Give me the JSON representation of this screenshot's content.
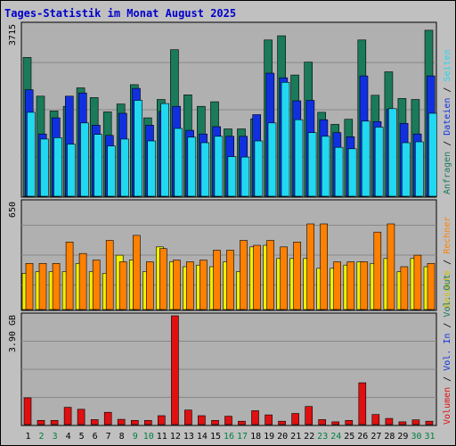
{
  "title": "Tages-Statistik im Monat August 2025",
  "colors": {
    "background": "#c0c0c0",
    "panel": "#b0b0b0",
    "title": "#0000cc",
    "anfragen": "#1a7a5a",
    "dateien": "#1030e0",
    "seiten": "#20d8f0",
    "besuche": "#f0f000",
    "rechner": "#ff8000",
    "volumen": "#e01010",
    "weekend_label": "#008040",
    "weekday_label": "#000000"
  },
  "legend": {
    "top_right": [
      {
        "text": "Anfragen",
        "color": "#1a7a5a"
      },
      {
        "text": " / ",
        "color": "#000000"
      },
      {
        "text": "Dateien",
        "color": "#1030e0"
      },
      {
        "text": " / ",
        "color": "#000000"
      },
      {
        "text": "Seiten",
        "color": "#20d8f0"
      }
    ],
    "middle_right": [
      {
        "text": "Besuche",
        "color": "#d0c000"
      },
      {
        "text": " / ",
        "color": "#000000"
      },
      {
        "text": "Rechner",
        "color": "#ff8000"
      }
    ],
    "bottom_right": [
      {
        "text": "Volumen",
        "color": "#e01010"
      },
      {
        "text": " / ",
        "color": "#000000"
      },
      {
        "text": "Vol. In",
        "color": "#1030e0"
      },
      {
        "text": " / ",
        "color": "#000000"
      },
      {
        "text": "Vol. Out",
        "color": "#1a7a5a"
      }
    ]
  },
  "chart_data": [
    {
      "type": "bar",
      "panel": "requests",
      "ymax_label": "3715",
      "ylim": [
        0,
        3715
      ],
      "categories": [
        "1",
        "2",
        "3",
        "4",
        "5",
        "6",
        "7",
        "8",
        "9",
        "10",
        "11",
        "12",
        "13",
        "14",
        "15",
        "16",
        "17",
        "18",
        "19",
        "20",
        "21",
        "22",
        "23",
        "24",
        "25",
        "26",
        "27",
        "28",
        "29",
        "30",
        "31"
      ],
      "series": [
        {
          "name": "Anfragen",
          "color": "#1a7a5a",
          "values": [
            3010,
            2170,
            1850,
            1950,
            2350,
            2140,
            1830,
            2000,
            2420,
            1700,
            2100,
            3180,
            2200,
            1950,
            2050,
            1460,
            1460,
            1680,
            3390,
            3480,
            2630,
            2910,
            1820,
            1560,
            1670,
            3390,
            2190,
            2700,
            2120,
            2100,
            3600
          ]
        },
        {
          "name": "Dateien",
          "color": "#1030e0",
          "values": [
            2310,
            1350,
            1700,
            2170,
            2240,
            1540,
            1320,
            1800,
            2340,
            1540,
            1840,
            1950,
            1430,
            1350,
            1510,
            1300,
            1300,
            1770,
            2670,
            2570,
            2070,
            2080,
            1660,
            1380,
            1290,
            2610,
            1620,
            1890,
            1580,
            1350,
            2610
          ]
        },
        {
          "name": "Seiten",
          "color": "#20d8f0",
          "values": [
            1820,
            1240,
            1270,
            1130,
            1590,
            1340,
            1090,
            1240,
            2080,
            1200,
            2010,
            1470,
            1280,
            1160,
            1300,
            860,
            850,
            1200,
            1590,
            2470,
            1660,
            1380,
            1300,
            1060,
            1030,
            1630,
            1500,
            1900,
            1160,
            1180,
            1800
          ]
        }
      ]
    },
    {
      "type": "bar",
      "panel": "visits",
      "ymax_label": "650",
      "ylim": [
        0,
        650
      ],
      "categories": [
        "1",
        "2",
        "3",
        "4",
        "5",
        "6",
        "7",
        "8",
        "9",
        "10",
        "11",
        "12",
        "13",
        "14",
        "15",
        "16",
        "17",
        "18",
        "19",
        "20",
        "21",
        "22",
        "23",
        "24",
        "25",
        "26",
        "27",
        "28",
        "29",
        "30",
        "31"
      ],
      "series": [
        {
          "name": "Besuche",
          "color": "#f0f000",
          "values": [
            220,
            230,
            230,
            230,
            280,
            230,
            220,
            330,
            300,
            230,
            380,
            290,
            260,
            270,
            260,
            290,
            230,
            380,
            390,
            310,
            310,
            310,
            250,
            250,
            270,
            290,
            280,
            310,
            230,
            310,
            260
          ]
        },
        {
          "name": "Rechner",
          "color": "#ff8000",
          "values": [
            280,
            280,
            280,
            410,
            340,
            300,
            420,
            290,
            450,
            290,
            370,
            300,
            290,
            300,
            360,
            360,
            420,
            390,
            420,
            380,
            410,
            520,
            520,
            290,
            290,
            290,
            470,
            520,
            260,
            330,
            280
          ]
        }
      ]
    },
    {
      "type": "bar",
      "panel": "volume",
      "ymax_label": "3.90 GB",
      "ylim": [
        0,
        3.9
      ],
      "categories": [
        "1",
        "2",
        "3",
        "4",
        "5",
        "6",
        "7",
        "8",
        "9",
        "10",
        "11",
        "12",
        "13",
        "14",
        "15",
        "16",
        "17",
        "18",
        "19",
        "20",
        "21",
        "22",
        "23",
        "24",
        "25",
        "26",
        "27",
        "28",
        "29",
        "30",
        "31"
      ],
      "series": [
        {
          "name": "Volumen",
          "color": "#e01010",
          "values": [
            0.96,
            0.15,
            0.15,
            0.62,
            0.55,
            0.18,
            0.44,
            0.19,
            0.15,
            0.15,
            0.32,
            3.9,
            0.52,
            0.32,
            0.15,
            0.3,
            0.12,
            0.5,
            0.35,
            0.12,
            0.4,
            0.65,
            0.18,
            0.1,
            0.15,
            1.5,
            0.36,
            0.22,
            0.1,
            0.17,
            0.12
          ]
        }
      ]
    }
  ],
  "weekend_days": [
    2,
    3,
    9,
    10,
    16,
    17,
    23,
    24,
    30,
    31
  ]
}
